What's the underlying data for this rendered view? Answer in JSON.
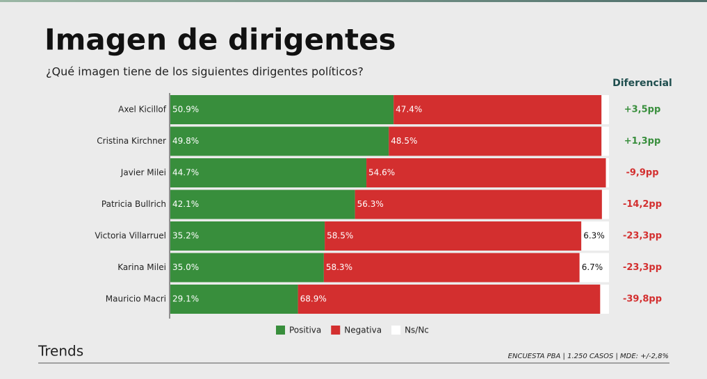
{
  "chart_data": {
    "type": "stacked_bar_horizontal",
    "title": "Imagen de dirigentes",
    "subtitle": "¿Qué imagen tiene de los siguientes dirigentes políticos?",
    "categories": [
      "Axel Kicillof",
      "Cristina Kirchner",
      "Javier Milei",
      "Patricia Bullrich",
      "Victoria Villarruel",
      "Karina Milei",
      "Mauricio Macri"
    ],
    "xlim": [
      0,
      100
    ],
    "series": [
      {
        "name": "Positiva",
        "color": "#388e3c",
        "label_color": "#ffffff",
        "values": [
          50.9,
          49.8,
          44.7,
          42.1,
          35.2,
          35.0,
          29.1
        ],
        "value_labels": [
          "50.9%",
          "49.8%",
          "44.7%",
          "42.1%",
          "35.2%",
          "35.0%",
          "29.1%"
        ]
      },
      {
        "name": "Negativa",
        "color": "#d32f2f",
        "label_color": "#ffffff",
        "values": [
          47.4,
          48.5,
          54.6,
          56.3,
          58.5,
          58.3,
          68.9
        ],
        "value_labels": [
          "47.4%",
          "48.5%",
          "54.6%",
          "56.3%",
          "58.5%",
          "58.3%",
          "68.9%"
        ]
      },
      {
        "name": "Ns/Nc",
        "color": "#ffffff",
        "label_color": "#111111",
        "values": [
          1.7,
          1.7,
          0.7,
          1.6,
          6.3,
          6.7,
          2.0
        ],
        "value_labels": [
          null,
          null,
          null,
          null,
          "6.3%",
          "6.7%",
          null
        ]
      }
    ],
    "differential": {
      "title": "Diferencial",
      "positive_color": "#388e3c",
      "negative_color": "#d32f2f",
      "values": [
        {
          "value": 3.5,
          "label": "+3,5pp"
        },
        {
          "value": 1.3,
          "label": "+1,3pp"
        },
        {
          "value": -9.9,
          "label": "-9,9pp"
        },
        {
          "value": -14.2,
          "label": "-14,2pp"
        },
        {
          "value": -23.3,
          "label": "-23,3pp"
        },
        {
          "value": -23.3,
          "label": "-23,3pp"
        },
        {
          "value": -39.8,
          "label": "-39,8pp"
        }
      ]
    },
    "brand": "Trends",
    "footnote": "ENCUESTA PBA | 1.250 CASOS | MDE: +/-2,8%"
  }
}
